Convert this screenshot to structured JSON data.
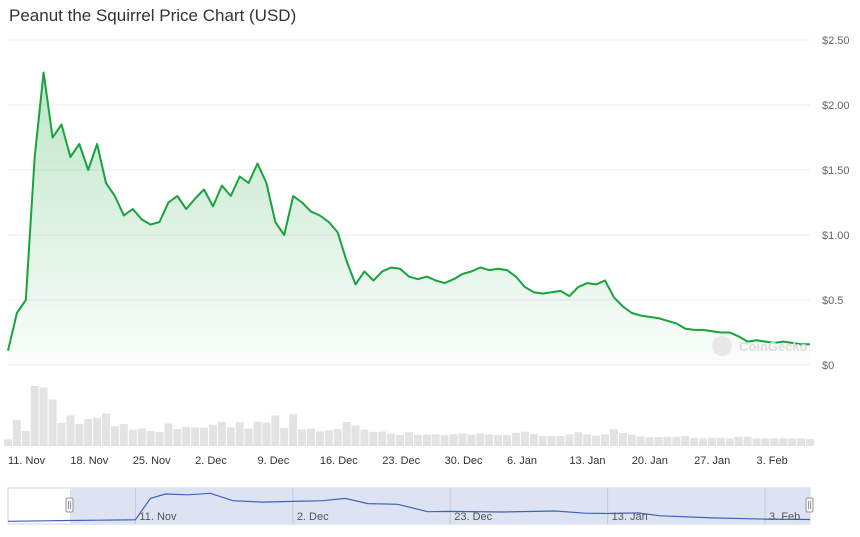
{
  "title": "Peanut the Squirrel Price Chart (USD)",
  "watermark": "CoinGecko",
  "colors": {
    "line": "#18a33d",
    "fill": "#18a33d",
    "volume": "#e3e3e3",
    "navigator_line": "#3f63b8",
    "navigator_fill": "#dde3f2",
    "grid": "#ececec"
  },
  "chart_data": {
    "type": "area",
    "title": "Peanut the Squirrel Price Chart (USD)",
    "xlabel": "",
    "ylabel": "",
    "ylim": [
      0,
      2.5
    ],
    "y_ticks": [
      "$0",
      "$0.5",
      "$1.00",
      "$1.50",
      "$2.00",
      "$2.50"
    ],
    "x_ticks": [
      "11. Nov",
      "18. Nov",
      "25. Nov",
      "2. Dec",
      "9. Dec",
      "16. Dec",
      "23. Dec",
      "30. Dec",
      "6. Jan",
      "13. Jan",
      "20. Jan",
      "27. Jan",
      "3. Feb"
    ],
    "x_tick_dates": [
      "2024-11-11",
      "2024-11-18",
      "2024-11-25",
      "2024-12-02",
      "2024-12-09",
      "2024-12-16",
      "2024-12-23",
      "2024-12-30",
      "2025-01-06",
      "2025-01-13",
      "2025-01-20",
      "2025-01-27",
      "2025-02-03"
    ],
    "x_range": [
      "2024-11-11",
      "2025-02-09"
    ],
    "grid": true,
    "series": [
      {
        "points": [
          [
            "2024-11-11",
            0.11
          ],
          [
            "2024-11-12",
            0.4
          ],
          [
            "2024-11-13",
            0.5
          ],
          [
            "2024-11-14",
            1.6
          ],
          [
            "2024-11-15",
            2.25
          ],
          [
            "2024-11-16",
            1.75
          ],
          [
            "2024-11-17",
            1.85
          ],
          [
            "2024-11-18",
            1.6
          ],
          [
            "2024-11-19",
            1.7
          ],
          [
            "2024-11-20",
            1.5
          ],
          [
            "2024-11-21",
            1.7
          ],
          [
            "2024-11-22",
            1.4
          ],
          [
            "2024-11-23",
            1.3
          ],
          [
            "2024-11-24",
            1.15
          ],
          [
            "2024-11-25",
            1.2
          ],
          [
            "2024-11-26",
            1.12
          ],
          [
            "2024-11-27",
            1.08
          ],
          [
            "2024-11-28",
            1.1
          ],
          [
            "2024-11-29",
            1.25
          ],
          [
            "2024-11-30",
            1.3
          ],
          [
            "2024-12-01",
            1.2
          ],
          [
            "2024-12-02",
            1.28
          ],
          [
            "2024-12-03",
            1.35
          ],
          [
            "2024-12-04",
            1.22
          ],
          [
            "2024-12-05",
            1.38
          ],
          [
            "2024-12-06",
            1.3
          ],
          [
            "2024-12-07",
            1.45
          ],
          [
            "2024-12-08",
            1.4
          ],
          [
            "2024-12-09",
            1.55
          ],
          [
            "2024-12-10",
            1.4
          ],
          [
            "2024-12-11",
            1.1
          ],
          [
            "2024-12-12",
            1.0
          ],
          [
            "2024-12-13",
            1.3
          ],
          [
            "2024-12-14",
            1.25
          ],
          [
            "2024-12-15",
            1.18
          ],
          [
            "2024-12-16",
            1.15
          ],
          [
            "2024-12-17",
            1.1
          ],
          [
            "2024-12-18",
            1.02
          ],
          [
            "2024-12-19",
            0.8
          ],
          [
            "2024-12-20",
            0.62
          ],
          [
            "2024-12-21",
            0.72
          ],
          [
            "2024-12-22",
            0.65
          ],
          [
            "2024-12-23",
            0.72
          ],
          [
            "2024-12-24",
            0.75
          ],
          [
            "2024-12-25",
            0.74
          ],
          [
            "2024-12-26",
            0.68
          ],
          [
            "2024-12-27",
            0.66
          ],
          [
            "2024-12-28",
            0.68
          ],
          [
            "2024-12-29",
            0.65
          ],
          [
            "2024-12-30",
            0.63
          ],
          [
            "2024-12-31",
            0.66
          ],
          [
            "2025-01-01",
            0.7
          ],
          [
            "2025-01-02",
            0.72
          ],
          [
            "2025-01-03",
            0.75
          ],
          [
            "2025-01-04",
            0.73
          ],
          [
            "2025-01-05",
            0.74
          ],
          [
            "2025-01-06",
            0.73
          ],
          [
            "2025-01-07",
            0.68
          ],
          [
            "2025-01-08",
            0.6
          ],
          [
            "2025-01-09",
            0.56
          ],
          [
            "2025-01-10",
            0.55
          ],
          [
            "2025-01-11",
            0.56
          ],
          [
            "2025-01-12",
            0.57
          ],
          [
            "2025-01-13",
            0.53
          ],
          [
            "2025-01-14",
            0.6
          ],
          [
            "2025-01-15",
            0.63
          ],
          [
            "2025-01-16",
            0.62
          ],
          [
            "2025-01-17",
            0.65
          ],
          [
            "2025-01-18",
            0.52
          ],
          [
            "2025-01-19",
            0.45
          ],
          [
            "2025-01-20",
            0.4
          ],
          [
            "2025-01-21",
            0.38
          ],
          [
            "2025-01-22",
            0.37
          ],
          [
            "2025-01-23",
            0.36
          ],
          [
            "2025-01-24",
            0.34
          ],
          [
            "2025-01-25",
            0.32
          ],
          [
            "2025-01-26",
            0.28
          ],
          [
            "2025-01-27",
            0.27
          ],
          [
            "2025-01-28",
            0.27
          ],
          [
            "2025-01-29",
            0.26
          ],
          [
            "2025-01-30",
            0.25
          ],
          [
            "2025-01-31",
            0.25
          ],
          [
            "2025-02-01",
            0.22
          ],
          [
            "2025-02-02",
            0.18
          ],
          [
            "2025-02-03",
            0.19
          ],
          [
            "2025-02-04",
            0.18
          ],
          [
            "2025-02-05",
            0.17
          ],
          [
            "2025-02-06",
            0.18
          ],
          [
            "2025-02-07",
            0.17
          ],
          [
            "2025-02-08",
            0.16
          ],
          [
            "2025-02-09",
            0.16
          ]
        ]
      }
    ],
    "navigator": {
      "x_ticks": [
        "11. Nov",
        "2. Dec",
        "23. Dec",
        "13. Jan",
        "3. Feb"
      ],
      "x_tick_dates": [
        "2024-11-11",
        "2024-12-02",
        "2024-12-23",
        "2025-01-13",
        "2025-02-03"
      ],
      "points": [
        [
          "2024-10-25",
          0.05
        ],
        [
          "2024-10-30",
          0.08
        ],
        [
          "2024-11-02",
          0.1
        ],
        [
          "2024-11-06",
          0.12
        ],
        [
          "2024-11-11",
          0.15
        ],
        [
          "2024-11-13",
          1.6
        ],
        [
          "2024-11-15",
          1.9
        ],
        [
          "2024-11-18",
          1.85
        ],
        [
          "2024-11-21",
          1.95
        ],
        [
          "2024-11-24",
          1.45
        ],
        [
          "2024-11-28",
          1.35
        ],
        [
          "2024-12-02",
          1.4
        ],
        [
          "2024-12-06",
          1.45
        ],
        [
          "2024-12-09",
          1.6
        ],
        [
          "2024-12-12",
          1.25
        ],
        [
          "2024-12-16",
          1.2
        ],
        [
          "2024-12-20",
          0.7
        ],
        [
          "2024-12-23",
          0.72
        ],
        [
          "2024-12-30",
          0.68
        ],
        [
          "2025-01-06",
          0.75
        ],
        [
          "2025-01-10",
          0.6
        ],
        [
          "2025-01-13",
          0.58
        ],
        [
          "2025-01-17",
          0.62
        ],
        [
          "2025-01-20",
          0.42
        ],
        [
          "2025-01-27",
          0.28
        ],
        [
          "2025-02-03",
          0.2
        ],
        [
          "2025-02-09",
          0.17
        ]
      ]
    }
  }
}
